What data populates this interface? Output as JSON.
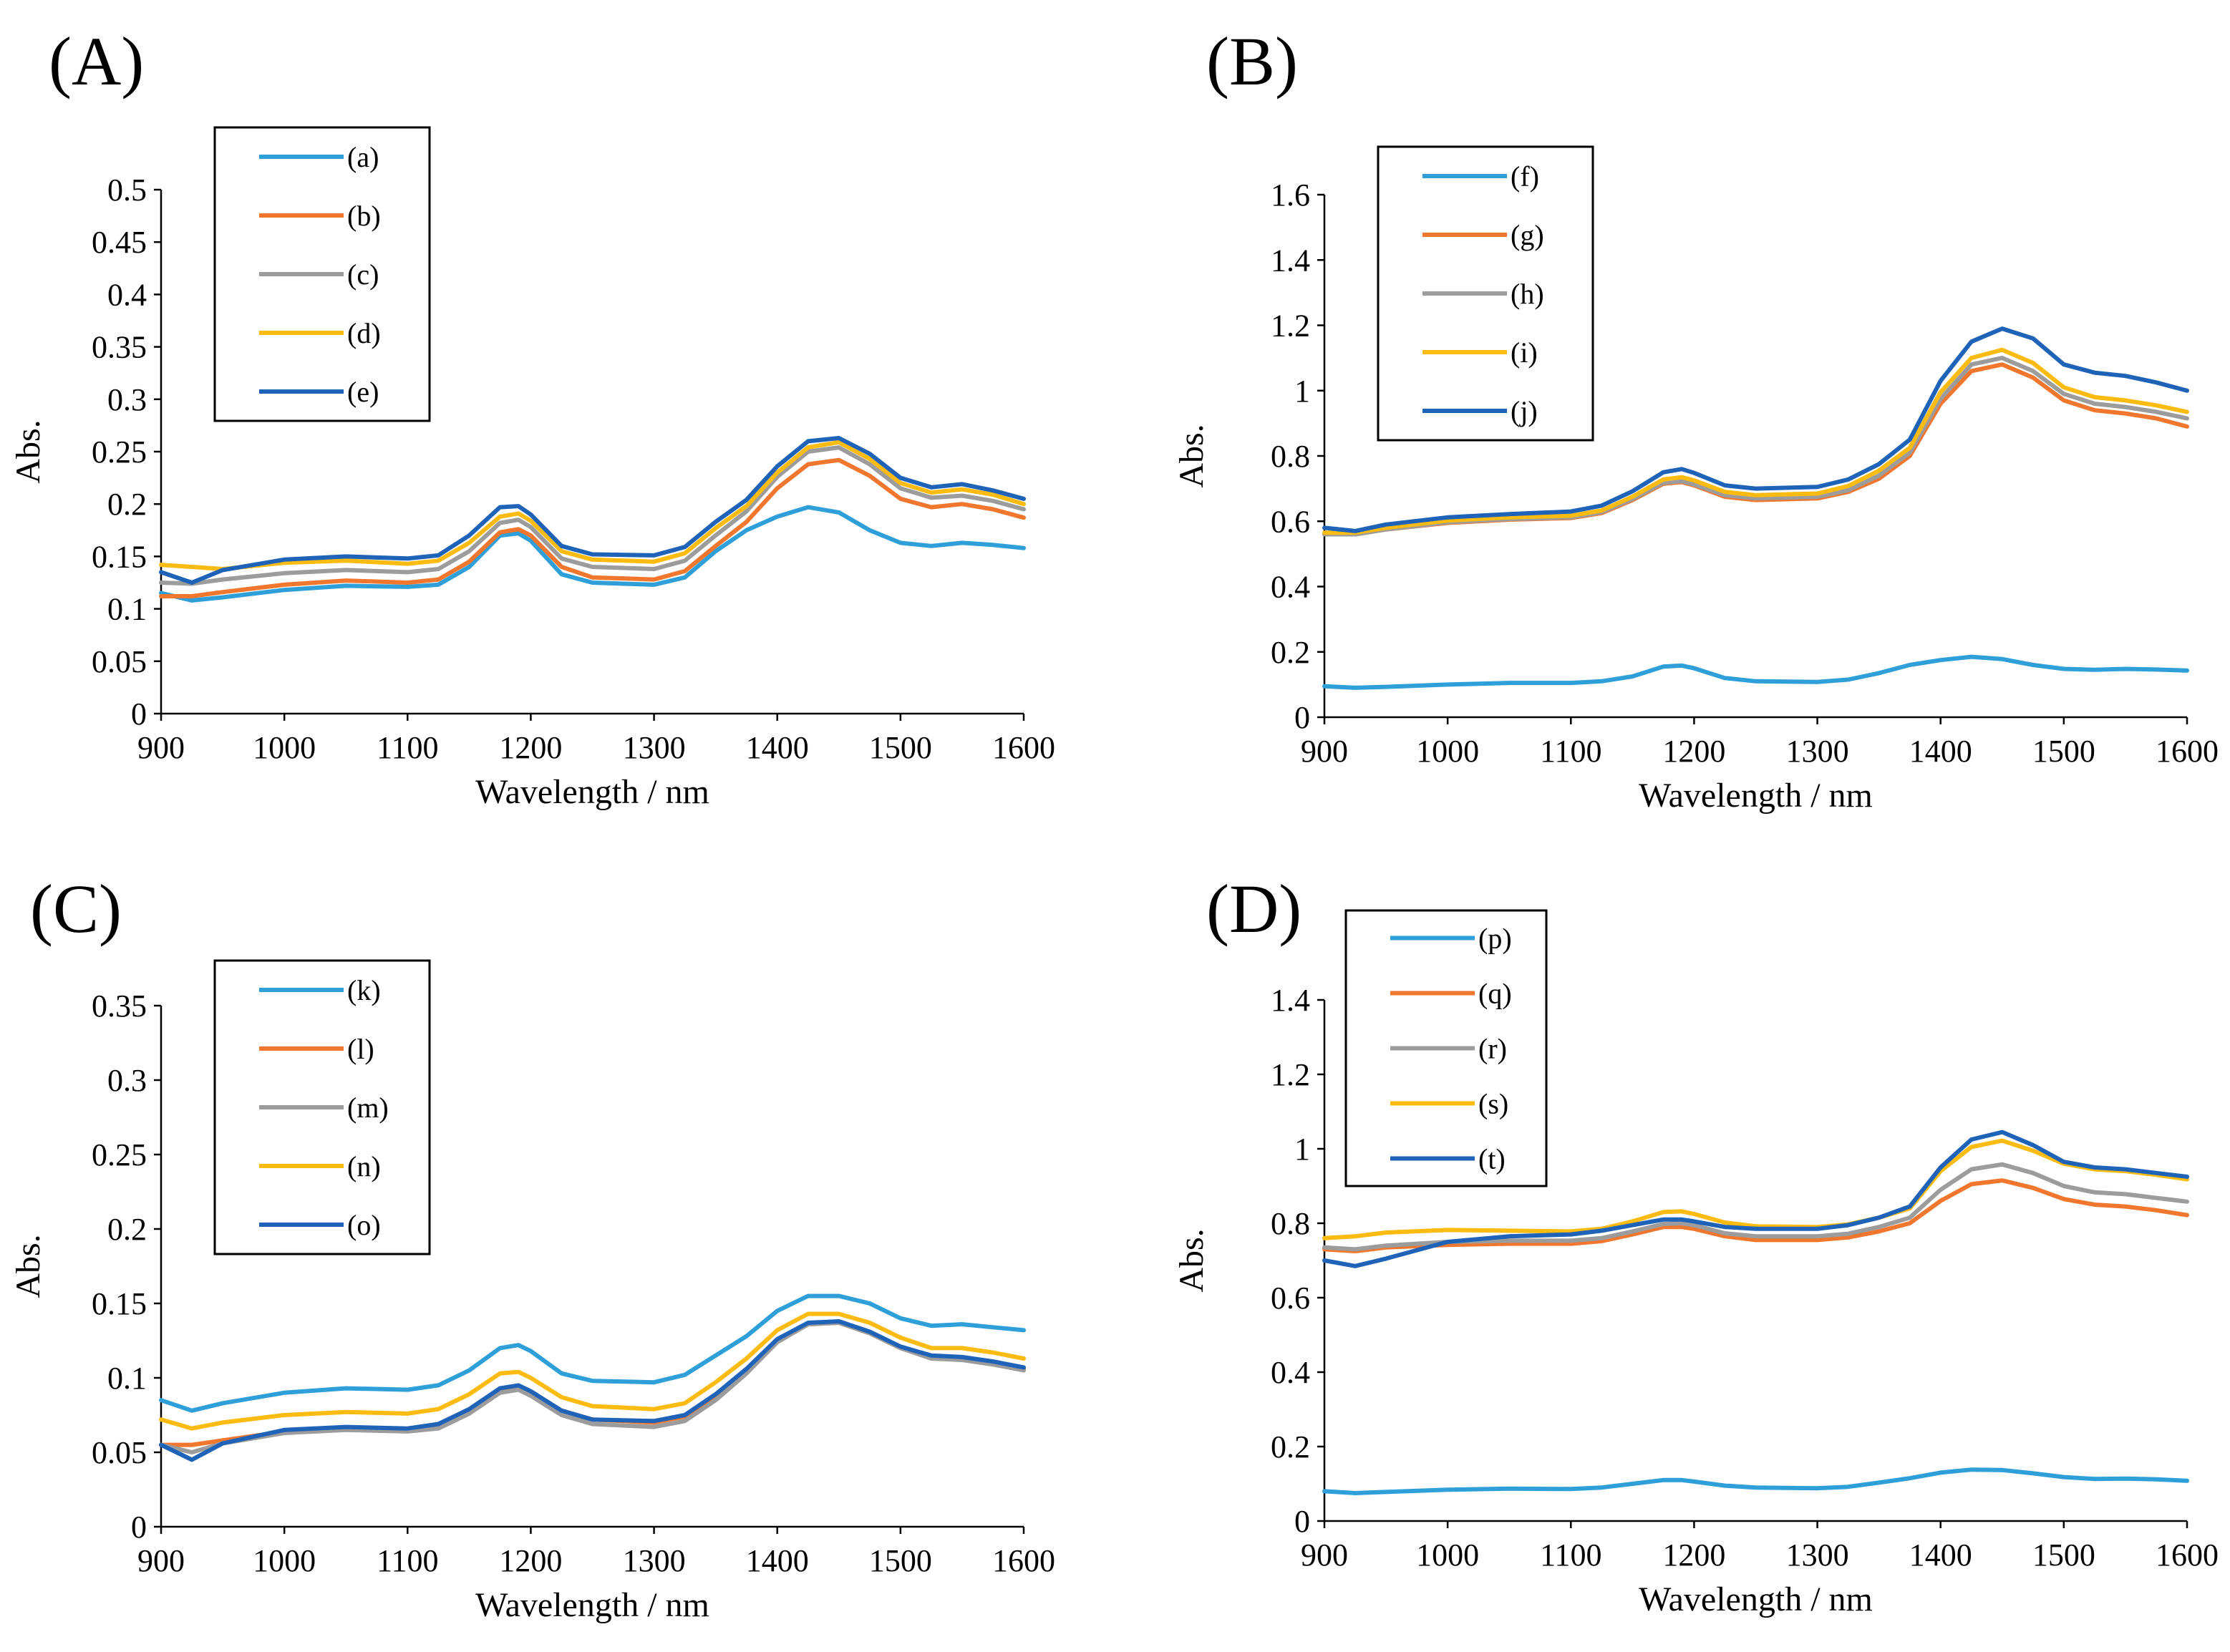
{
  "figure": {
    "palette": [
      "#2e9fd9",
      "#f2772e",
      "#9c9c9c",
      "#fbbb10",
      "#1f63b8"
    ]
  },
  "chart_data": [
    {
      "panel": "(A)",
      "type": "line",
      "xlabel": "Wavelength / nm",
      "ylabel": "Abs.",
      "xlim": [
        900,
        1600
      ],
      "ylim": [
        0,
        0.5
      ],
      "xticks": [
        "900",
        "1000",
        "1100",
        "1200",
        "1300",
        "1400",
        "1500",
        "1600"
      ],
      "yticks": [
        "0",
        "0.05",
        "0.1",
        "0.15",
        "0.2",
        "0.25",
        "0.3",
        "0.35",
        "0.4",
        "0.45",
        "0.5"
      ],
      "legend_position": "top-left",
      "x": [
        900,
        925,
        950,
        1000,
        1050,
        1100,
        1125,
        1150,
        1175,
        1190,
        1200,
        1225,
        1250,
        1300,
        1325,
        1350,
        1375,
        1400,
        1425,
        1450,
        1475,
        1500,
        1525,
        1550,
        1575,
        1600
      ],
      "series": [
        {
          "name": "(a)",
          "values": [
            0.115,
            0.108,
            0.111,
            0.118,
            0.122,
            0.121,
            0.123,
            0.14,
            0.17,
            0.172,
            0.165,
            0.133,
            0.125,
            0.123,
            0.13,
            0.155,
            0.175,
            0.188,
            0.197,
            0.192,
            0.175,
            0.163,
            0.16,
            0.163,
            0.161,
            0.158
          ]
        },
        {
          "name": "(b)",
          "values": [
            0.112,
            0.112,
            0.116,
            0.123,
            0.127,
            0.125,
            0.128,
            0.145,
            0.173,
            0.176,
            0.17,
            0.14,
            0.13,
            0.128,
            0.136,
            0.16,
            0.183,
            0.215,
            0.238,
            0.242,
            0.227,
            0.205,
            0.197,
            0.2,
            0.195,
            0.187
          ]
        },
        {
          "name": "(c)",
          "values": [
            0.125,
            0.124,
            0.128,
            0.134,
            0.137,
            0.135,
            0.138,
            0.155,
            0.182,
            0.185,
            0.178,
            0.148,
            0.14,
            0.138,
            0.146,
            0.17,
            0.193,
            0.226,
            0.25,
            0.254,
            0.238,
            0.215,
            0.206,
            0.208,
            0.203,
            0.195
          ]
        },
        {
          "name": "(d)",
          "values": [
            0.142,
            0.14,
            0.138,
            0.144,
            0.146,
            0.143,
            0.146,
            0.163,
            0.188,
            0.191,
            0.184,
            0.155,
            0.147,
            0.145,
            0.153,
            0.177,
            0.198,
            0.23,
            0.254,
            0.259,
            0.243,
            0.22,
            0.211,
            0.214,
            0.209,
            0.2
          ]
        },
        {
          "name": "(e)",
          "values": [
            0.135,
            0.125,
            0.137,
            0.147,
            0.15,
            0.148,
            0.151,
            0.17,
            0.197,
            0.198,
            0.19,
            0.16,
            0.152,
            0.151,
            0.159,
            0.183,
            0.204,
            0.236,
            0.26,
            0.263,
            0.248,
            0.225,
            0.216,
            0.219,
            0.213,
            0.205
          ]
        }
      ]
    },
    {
      "panel": "(B)",
      "type": "line",
      "xlabel": "Wavelength / nm",
      "ylabel": "Abs.",
      "xlim": [
        900,
        1600
      ],
      "ylim": [
        0,
        1.6
      ],
      "xticks": [
        "900",
        "1000",
        "1100",
        "1200",
        "1300",
        "1400",
        "1500",
        "1600"
      ],
      "yticks": [
        "0",
        "0.2",
        "0.4",
        "0.6",
        "0.8",
        "1",
        "1.2",
        "1.4",
        "1.6"
      ],
      "legend_position": "top-left",
      "x": [
        900,
        925,
        950,
        1000,
        1050,
        1100,
        1125,
        1150,
        1175,
        1190,
        1200,
        1225,
        1250,
        1300,
        1325,
        1350,
        1375,
        1400,
        1425,
        1450,
        1475,
        1500,
        1525,
        1550,
        1575,
        1600
      ],
      "series": [
        {
          "name": "(f)",
          "values": [
            0.095,
            0.09,
            0.093,
            0.1,
            0.105,
            0.105,
            0.11,
            0.125,
            0.155,
            0.158,
            0.15,
            0.12,
            0.11,
            0.108,
            0.115,
            0.135,
            0.16,
            0.175,
            0.185,
            0.178,
            0.16,
            0.148,
            0.145,
            0.148,
            0.146,
            0.143
          ]
        },
        {
          "name": "(g)",
          "values": [
            0.56,
            0.56,
            0.575,
            0.595,
            0.605,
            0.61,
            0.625,
            0.665,
            0.715,
            0.72,
            0.71,
            0.675,
            0.665,
            0.67,
            0.69,
            0.73,
            0.8,
            0.96,
            1.06,
            1.08,
            1.04,
            0.97,
            0.94,
            0.93,
            0.915,
            0.89
          ]
        },
        {
          "name": "(h)",
          "values": [
            0.56,
            0.56,
            0.575,
            0.597,
            0.607,
            0.612,
            0.628,
            0.668,
            0.718,
            0.723,
            0.713,
            0.68,
            0.67,
            0.675,
            0.695,
            0.74,
            0.81,
            0.975,
            1.08,
            1.1,
            1.06,
            0.99,
            0.96,
            0.95,
            0.935,
            0.915
          ]
        },
        {
          "name": "(i)",
          "values": [
            0.565,
            0.565,
            0.58,
            0.602,
            0.612,
            0.617,
            0.633,
            0.675,
            0.728,
            0.735,
            0.725,
            0.69,
            0.68,
            0.685,
            0.708,
            0.755,
            0.825,
            0.995,
            1.1,
            1.125,
            1.085,
            1.01,
            0.98,
            0.97,
            0.955,
            0.935
          ]
        },
        {
          "name": "(j)",
          "values": [
            0.58,
            0.57,
            0.59,
            0.612,
            0.622,
            0.63,
            0.648,
            0.692,
            0.75,
            0.76,
            0.748,
            0.71,
            0.7,
            0.705,
            0.728,
            0.775,
            0.85,
            1.03,
            1.15,
            1.19,
            1.16,
            1.08,
            1.055,
            1.045,
            1.025,
            1.0
          ]
        }
      ]
    },
    {
      "panel": "(C)",
      "type": "line",
      "xlabel": "Wavelength / nm",
      "ylabel": "Abs.",
      "xlim": [
        900,
        1600
      ],
      "ylim": [
        0,
        0.35
      ],
      "xticks": [
        "900",
        "1000",
        "1100",
        "1200",
        "1300",
        "1400",
        "1500",
        "1600"
      ],
      "yticks": [
        "0",
        "0.05",
        "0.1",
        "0.15",
        "0.2",
        "0.25",
        "0.3",
        "0.35"
      ],
      "legend_position": "top-left",
      "x": [
        900,
        925,
        950,
        1000,
        1050,
        1100,
        1125,
        1150,
        1175,
        1190,
        1200,
        1225,
        1250,
        1300,
        1325,
        1350,
        1375,
        1400,
        1425,
        1450,
        1475,
        1500,
        1525,
        1550,
        1575,
        1600
      ],
      "series": [
        {
          "name": "(k)",
          "values": [
            0.085,
            0.078,
            0.083,
            0.09,
            0.093,
            0.092,
            0.095,
            0.105,
            0.12,
            0.122,
            0.118,
            0.103,
            0.098,
            0.097,
            0.102,
            0.115,
            0.128,
            0.145,
            0.155,
            0.155,
            0.15,
            0.14,
            0.135,
            0.136,
            0.134,
            0.132
          ]
        },
        {
          "name": "(l)",
          "values": [
            0.055,
            0.055,
            0.058,
            0.064,
            0.066,
            0.065,
            0.068,
            0.078,
            0.092,
            0.094,
            0.09,
            0.078,
            0.072,
            0.07,
            0.074,
            0.088,
            0.105,
            0.125,
            0.136,
            0.137,
            0.13,
            0.12,
            0.114,
            0.113,
            0.11,
            0.106
          ]
        },
        {
          "name": "(m)",
          "values": [
            0.055,
            0.05,
            0.056,
            0.063,
            0.065,
            0.064,
            0.066,
            0.076,
            0.09,
            0.092,
            0.088,
            0.075,
            0.069,
            0.067,
            0.071,
            0.085,
            0.103,
            0.124,
            0.136,
            0.137,
            0.13,
            0.12,
            0.113,
            0.112,
            0.109,
            0.105
          ]
        },
        {
          "name": "(n)",
          "values": [
            0.072,
            0.066,
            0.07,
            0.075,
            0.077,
            0.076,
            0.079,
            0.089,
            0.103,
            0.104,
            0.1,
            0.087,
            0.081,
            0.079,
            0.083,
            0.097,
            0.113,
            0.132,
            0.143,
            0.143,
            0.137,
            0.127,
            0.12,
            0.12,
            0.117,
            0.113
          ]
        },
        {
          "name": "(o)",
          "values": [
            0.055,
            0.045,
            0.056,
            0.065,
            0.067,
            0.066,
            0.069,
            0.079,
            0.093,
            0.095,
            0.091,
            0.078,
            0.072,
            0.071,
            0.075,
            0.089,
            0.106,
            0.126,
            0.137,
            0.138,
            0.131,
            0.121,
            0.115,
            0.114,
            0.111,
            0.107
          ]
        }
      ]
    },
    {
      "panel": "(D)",
      "type": "line",
      "xlabel": "Wavelength / nm",
      "ylabel": "Abs.",
      "xlim": [
        900,
        1600
      ],
      "ylim": [
        0,
        1.4
      ],
      "xticks": [
        "900",
        "1000",
        "1100",
        "1200",
        "1300",
        "1400",
        "1500",
        "1600"
      ],
      "yticks": [
        "0",
        "0.2",
        "0.4",
        "0.6",
        "0.8",
        "1",
        "1.2",
        "1.4"
      ],
      "legend_position": "top-left",
      "x": [
        900,
        925,
        950,
        1000,
        1050,
        1100,
        1125,
        1150,
        1175,
        1190,
        1200,
        1225,
        1250,
        1300,
        1325,
        1350,
        1375,
        1400,
        1425,
        1450,
        1475,
        1500,
        1525,
        1550,
        1575,
        1600
      ],
      "series": [
        {
          "name": "(p)",
          "values": [
            0.08,
            0.075,
            0.078,
            0.084,
            0.087,
            0.086,
            0.09,
            0.1,
            0.11,
            0.11,
            0.106,
            0.095,
            0.09,
            0.088,
            0.092,
            0.103,
            0.115,
            0.13,
            0.138,
            0.137,
            0.128,
            0.118,
            0.113,
            0.114,
            0.112,
            0.108
          ]
        },
        {
          "name": "(q)",
          "values": [
            0.73,
            0.725,
            0.735,
            0.742,
            0.745,
            0.745,
            0.752,
            0.77,
            0.79,
            0.79,
            0.785,
            0.765,
            0.755,
            0.755,
            0.762,
            0.778,
            0.8,
            0.86,
            0.905,
            0.915,
            0.895,
            0.865,
            0.85,
            0.845,
            0.835,
            0.822
          ]
        },
        {
          "name": "(r)",
          "values": [
            0.735,
            0.73,
            0.74,
            0.75,
            0.753,
            0.753,
            0.76,
            0.778,
            0.798,
            0.8,
            0.795,
            0.773,
            0.765,
            0.765,
            0.772,
            0.79,
            0.815,
            0.89,
            0.945,
            0.958,
            0.935,
            0.9,
            0.883,
            0.878,
            0.868,
            0.858
          ]
        },
        {
          "name": "(s)",
          "values": [
            0.76,
            0.765,
            0.775,
            0.782,
            0.78,
            0.778,
            0.785,
            0.805,
            0.83,
            0.832,
            0.825,
            0.802,
            0.792,
            0.79,
            0.797,
            0.815,
            0.84,
            0.94,
            1.005,
            1.022,
            0.995,
            0.96,
            0.945,
            0.94,
            0.93,
            0.918
          ]
        },
        {
          "name": "(t)",
          "values": [
            0.7,
            0.685,
            0.705,
            0.75,
            0.765,
            0.77,
            0.78,
            0.795,
            0.81,
            0.81,
            0.805,
            0.79,
            0.785,
            0.785,
            0.795,
            0.815,
            0.845,
            0.95,
            1.025,
            1.045,
            1.01,
            0.965,
            0.95,
            0.945,
            0.935,
            0.925
          ]
        }
      ]
    }
  ]
}
